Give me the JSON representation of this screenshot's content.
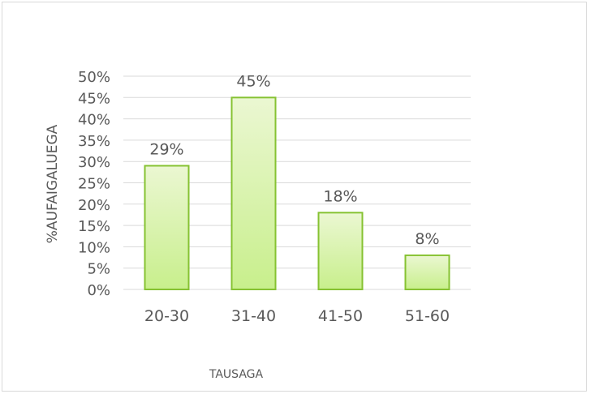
{
  "chart_data": {
    "type": "bar",
    "categories": [
      "20-30",
      "31-40",
      "41-50",
      "51-60"
    ],
    "values": [
      29,
      45,
      18,
      8
    ],
    "data_labels": [
      "29%",
      "45%",
      "18%",
      "8%"
    ],
    "title": "",
    "xlabel": "TAUSAGA",
    "ylabel": "%AUFAIGALUEGA",
    "ylim": [
      0,
      50
    ],
    "yticks": [
      "0%",
      "5%",
      "10%",
      "15%",
      "20%",
      "25%",
      "30%",
      "35%",
      "40%",
      "45%",
      "50%"
    ],
    "grid": true,
    "legend": "none",
    "bar_fill_top": "#ebf7d2",
    "bar_fill_bottom": "#c8ef8c",
    "bar_stroke": "#86c232",
    "grid_color": "#d9d9d9"
  }
}
